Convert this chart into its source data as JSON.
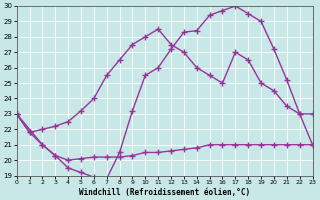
{
  "line1_x": [
    0,
    1,
    2,
    3,
    4,
    5,
    6,
    7,
    8,
    9,
    10,
    11,
    12,
    13,
    14,
    15,
    16,
    17,
    18,
    19,
    20,
    21,
    22,
    23
  ],
  "line1_y": [
    23.0,
    21.8,
    21.0,
    20.3,
    19.5,
    19.2,
    18.9,
    18.8,
    20.5,
    23.2,
    25.5,
    26.0,
    27.2,
    28.3,
    28.4,
    29.4,
    29.7,
    30.0,
    29.5,
    29.0,
    27.2,
    25.2,
    23.0,
    21.0
  ],
  "line2_x": [
    0,
    2,
    3,
    4,
    5,
    6,
    7,
    8,
    9,
    10,
    11,
    12,
    13,
    14,
    15,
    16,
    17,
    18,
    19,
    20,
    21,
    22,
    23
  ],
  "line2_y": [
    23.0,
    21.0,
    20.3,
    20.0,
    20.1,
    20.2,
    20.2,
    20.2,
    20.3,
    20.5,
    20.5,
    20.6,
    20.7,
    20.8,
    21.0,
    21.0,
    21.0,
    21.0,
    21.0,
    21.0,
    21.0,
    21.0,
    21.0
  ],
  "line3_x": [
    0,
    1,
    2,
    3,
    4,
    5,
    6,
    7,
    8,
    9,
    10,
    11,
    12,
    13,
    14,
    15,
    16,
    17,
    18,
    19,
    20,
    21,
    22,
    23
  ],
  "line3_y": [
    23.0,
    21.8,
    22.0,
    22.2,
    22.5,
    23.2,
    24.0,
    25.5,
    26.5,
    27.5,
    28.0,
    28.5,
    27.5,
    27.0,
    26.0,
    25.5,
    25.0,
    27.0,
    26.5,
    25.0,
    24.5,
    23.5,
    23.0,
    23.0
  ],
  "line_color": "#993399",
  "bg_color": "#c8e8e8",
  "grid_color": "#ffffff",
  "xlabel": "Windchill (Refroidissement éolien,°C)",
  "ylim": [
    19,
    30
  ],
  "xlim": [
    0,
    23
  ],
  "yticks": [
    19,
    20,
    21,
    22,
    23,
    24,
    25,
    26,
    27,
    28,
    29,
    30
  ],
  "xticks": [
    0,
    1,
    2,
    3,
    4,
    5,
    6,
    7,
    8,
    9,
    10,
    11,
    12,
    13,
    14,
    15,
    16,
    17,
    18,
    19,
    20,
    21,
    22,
    23
  ],
  "linewidth": 1.0,
  "markersize": 4
}
